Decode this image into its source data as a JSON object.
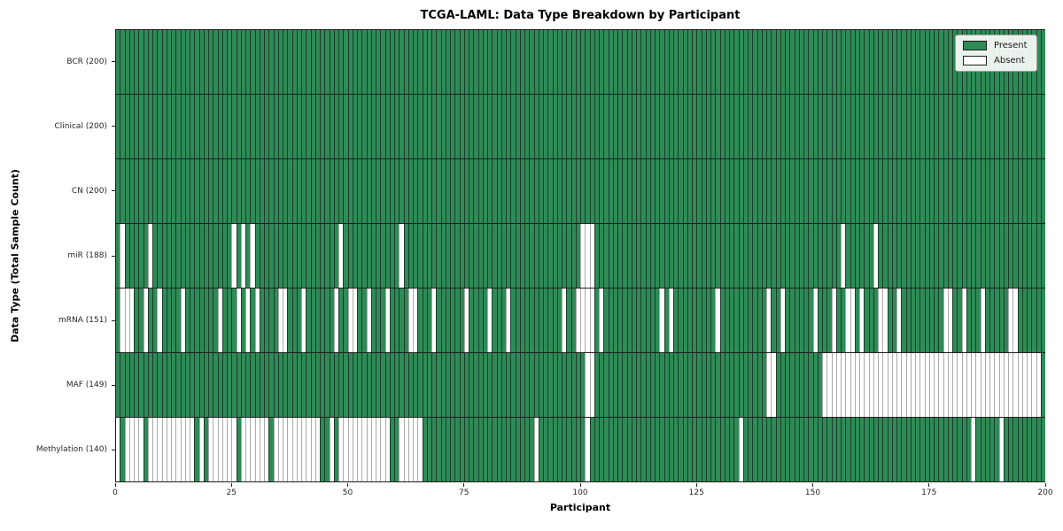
{
  "title": "TCGA-LAML: Data Type Breakdown by Participant",
  "xlabel": "Participant",
  "ylabel": "Data Type (Total Sample Count)",
  "legend": {
    "present_label": "Present",
    "absent_label": "Absent"
  },
  "colors": {
    "present": "#2e8b57",
    "absent": "#ffffff",
    "present_border": "#1a3d29",
    "absent_border": "#ababab",
    "row_separator": "#1f1f1f"
  },
  "chart_data": {
    "type": "heatmap",
    "title": "TCGA-LAML: Data Type Breakdown by Participant",
    "xlabel": "Participant",
    "ylabel": "Data Type (Total Sample Count)",
    "legend_entries": [
      "Present",
      "Absent"
    ],
    "legend_position": "upper right",
    "grid": false,
    "n_participants": 200,
    "x_axis": {
      "label": "Participant",
      "min": 0,
      "max": 200,
      "ticks": [
        0,
        25,
        50,
        75,
        100,
        125,
        150,
        175,
        200
      ]
    },
    "cell_states": [
      "Present",
      "Absent"
    ],
    "rows": [
      {
        "label": "BCR (200)",
        "data_type": "BCR",
        "present_count": 200,
        "absent_count": 0,
        "absent_participants": []
      },
      {
        "label": "Clinical (200)",
        "data_type": "Clinical",
        "present_count": 200,
        "absent_count": 0,
        "absent_participants": []
      },
      {
        "label": "CN (200)",
        "data_type": "CN",
        "present_count": 200,
        "absent_count": 0,
        "absent_participants": []
      },
      {
        "label": "miR (188)",
        "data_type": "miR",
        "present_count": 188,
        "absent_count": 12,
        "absent_participants": [
          1,
          7,
          25,
          27,
          29,
          48,
          61,
          100,
          101,
          102,
          156,
          163
        ]
      },
      {
        "label": "mRNA (151)",
        "data_type": "mRNA",
        "present_count": 151,
        "absent_count": 49,
        "absent_participants": [
          1,
          2,
          3,
          6,
          9,
          14,
          22,
          26,
          28,
          30,
          35,
          36,
          40,
          47,
          50,
          51,
          54,
          58,
          63,
          64,
          68,
          75,
          80,
          84,
          96,
          99,
          100,
          101,
          102,
          104,
          117,
          119,
          129,
          140,
          143,
          150,
          154,
          157,
          158,
          160,
          164,
          165,
          168,
          178,
          179,
          182,
          186,
          192,
          193
        ]
      },
      {
        "label": "MAF (149)",
        "data_type": "MAF",
        "present_count": 149,
        "absent_count": 51,
        "absent_participants": [
          101,
          102,
          140,
          141,
          152,
          153,
          154,
          155,
          156,
          157,
          158,
          159,
          160,
          161,
          162,
          163,
          164,
          165,
          166,
          167,
          168,
          169,
          170,
          171,
          172,
          173,
          174,
          175,
          176,
          177,
          178,
          179,
          180,
          181,
          182,
          183,
          184,
          185,
          186,
          187,
          188,
          189,
          190,
          191,
          192,
          193,
          194,
          195,
          196,
          197,
          198
        ]
      },
      {
        "label": "Methylation (140)",
        "data_type": "Methylation",
        "present_count": 140,
        "absent_count": 60,
        "absent_participants": [
          0,
          2,
          3,
          4,
          5,
          7,
          8,
          9,
          10,
          11,
          12,
          13,
          14,
          15,
          16,
          18,
          20,
          21,
          22,
          23,
          24,
          25,
          27,
          28,
          29,
          30,
          31,
          32,
          34,
          35,
          36,
          37,
          38,
          39,
          40,
          41,
          42,
          43,
          46,
          48,
          49,
          50,
          51,
          52,
          53,
          54,
          55,
          56,
          57,
          58,
          61,
          62,
          63,
          64,
          65,
          90,
          101,
          134,
          184,
          190
        ]
      }
    ]
  }
}
